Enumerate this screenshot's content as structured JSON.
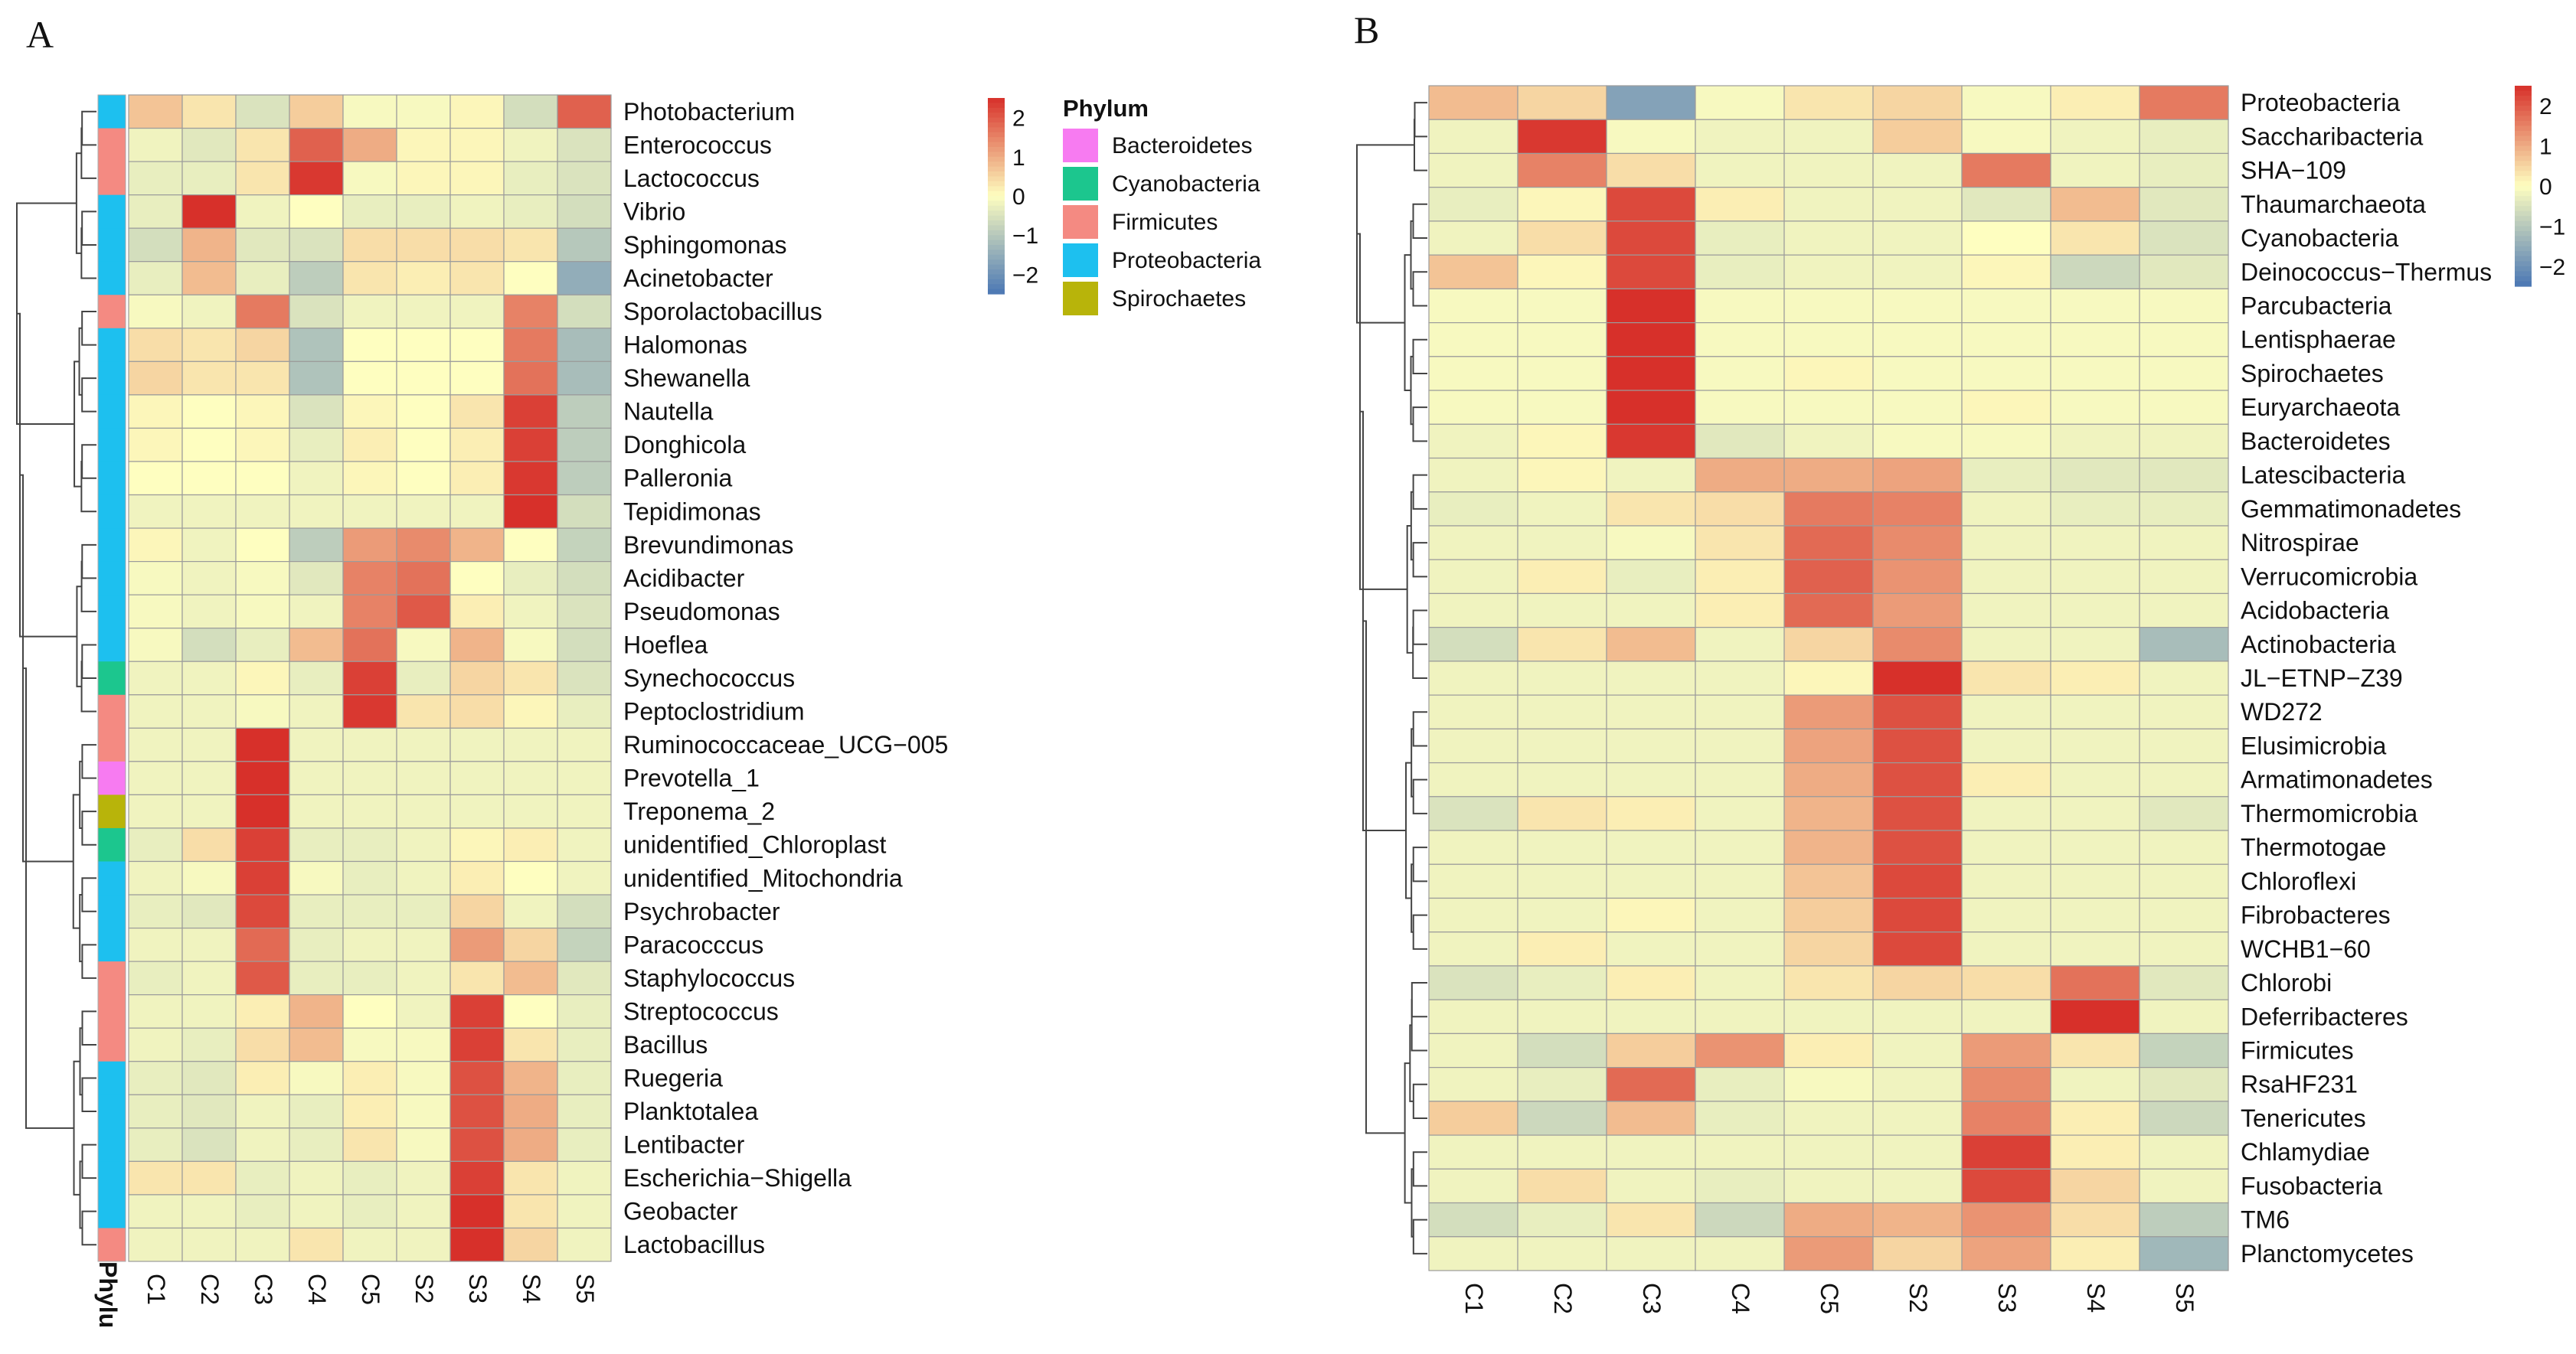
{
  "panels": {
    "a_label": "A",
    "b_label": "B"
  },
  "color_scale": {
    "low": "#4A77B4",
    "mid": "#FEFEC0",
    "high": "#D7302A",
    "ticks": [
      "2",
      "1",
      "0",
      "−1",
      "−2"
    ],
    "tick_values": [
      2,
      1,
      0,
      -1,
      -2
    ]
  },
  "phylum_legend": {
    "title": "Phylum",
    "annotation_label": "Phylu",
    "items": [
      {
        "name": "Bacteroidetes",
        "color": "#F77BF1"
      },
      {
        "name": "Cyanobacteria",
        "color": "#1CC68E"
      },
      {
        "name": "Firmicutes",
        "color": "#F48A82"
      },
      {
        "name": "Proteobacteria",
        "color": "#1DC0EF"
      },
      {
        "name": "Spirochaetes",
        "color": "#B8B40A"
      }
    ]
  },
  "chart_data": [
    {
      "type": "heatmap",
      "title": "A",
      "columns": [
        "C1",
        "C2",
        "C3",
        "C4",
        "C5",
        "S2",
        "S3",
        "S4",
        "S5"
      ],
      "rows": [
        "Photobacterium",
        "Enterococcus",
        "Lactococcus",
        "Vibrio",
        "Sphingomonas",
        "Acinetobacter",
        "Sporolactobacillus",
        "Halomonas",
        "Shewanella",
        "Nautella",
        "Donghicola",
        "Palleronia",
        "Tepidimonas",
        "Brevundimonas",
        "Acidibacter",
        "Pseudomonas",
        "Hoeflea",
        "Synechococcus",
        "Peptoclostridium",
        "Ruminococcaceae_UCG−005",
        "Prevotella_1",
        "Treponema_2",
        "unidentified_Chloroplast",
        "unidentified_Mitochondria",
        "Psychrobacter",
        "Paracocccus",
        "Staphylococcus",
        "Streptococcus",
        "Bacillus",
        "Ruegeria",
        "Planktotalea",
        "Lentibacter",
        "Escherichia−Shigella",
        "Geobacter",
        "Lactobacillus"
      ],
      "row_phylum": [
        "Proteobacteria",
        "Firmicutes",
        "Firmicutes",
        "Proteobacteria",
        "Proteobacteria",
        "Proteobacteria",
        "Firmicutes",
        "Proteobacteria",
        "Proteobacteria",
        "Proteobacteria",
        "Proteobacteria",
        "Proteobacteria",
        "Proteobacteria",
        "Proteobacteria",
        "Proteobacteria",
        "Proteobacteria",
        "Proteobacteria",
        "Cyanobacteria",
        "Firmicutes",
        "Firmicutes",
        "Bacteroidetes",
        "Spirochaetes",
        "Cyanobacteria",
        "Proteobacteria",
        "Proteobacteria",
        "Proteobacteria",
        "Firmicutes",
        "Firmicutes",
        "Firmicutes",
        "Proteobacteria",
        "Proteobacteria",
        "Proteobacteria",
        "Proteobacteria",
        "Proteobacteria",
        "Firmicutes"
      ],
      "values": [
        [
          0.7,
          0.3,
          -0.5,
          0.6,
          -0.1,
          -0.1,
          0.1,
          -0.6,
          1.9
        ],
        [
          -0.2,
          -0.4,
          0.3,
          1.9,
          1.0,
          0.1,
          0.1,
          -0.2,
          -0.5
        ],
        [
          -0.3,
          -0.3,
          0.3,
          2.4,
          -0.1,
          0.1,
          0.1,
          -0.3,
          -0.5
        ],
        [
          -0.3,
          2.5,
          -0.2,
          0.0,
          -0.3,
          -0.3,
          -0.2,
          -0.3,
          -0.6
        ],
        [
          -0.6,
          0.9,
          -0.4,
          -0.5,
          0.4,
          0.4,
          0.4,
          0.3,
          -1.0
        ],
        [
          -0.3,
          0.8,
          -0.3,
          -0.9,
          0.3,
          0.2,
          0.3,
          0.0,
          -1.5
        ],
        [
          -0.1,
          -0.2,
          1.6,
          -0.5,
          -0.2,
          -0.2,
          -0.2,
          1.5,
          -0.6
        ],
        [
          0.4,
          0.3,
          0.5,
          -1.1,
          0.0,
          0.0,
          0.0,
          1.6,
          -1.2
        ],
        [
          0.5,
          0.3,
          0.3,
          -1.1,
          0.0,
          0.0,
          0.0,
          1.7,
          -1.2
        ],
        [
          0.1,
          0.0,
          0.1,
          -0.5,
          0.1,
          0.0,
          0.3,
          2.3,
          -0.9
        ],
        [
          0.1,
          0.0,
          0.1,
          -0.3,
          0.2,
          0.0,
          0.2,
          2.3,
          -0.9
        ],
        [
          0.0,
          0.0,
          0.0,
          -0.2,
          0.1,
          0.0,
          0.2,
          2.4,
          -0.9
        ],
        [
          -0.2,
          -0.2,
          -0.2,
          -0.2,
          -0.2,
          -0.2,
          -0.2,
          2.5,
          -0.6
        ],
        [
          0.1,
          -0.2,
          0.0,
          -0.9,
          1.2,
          1.4,
          0.9,
          0.0,
          -0.8
        ],
        [
          -0.1,
          -0.2,
          -0.1,
          -0.4,
          1.5,
          1.7,
          0.0,
          -0.3,
          -0.6
        ],
        [
          -0.1,
          -0.2,
          -0.1,
          -0.2,
          1.5,
          2.0,
          0.2,
          -0.2,
          -0.5
        ],
        [
          -0.1,
          -0.6,
          -0.3,
          0.8,
          1.7,
          -0.1,
          0.9,
          -0.1,
          -0.6
        ],
        [
          -0.2,
          -0.2,
          0.1,
          -0.3,
          2.3,
          -0.3,
          0.5,
          0.3,
          -0.5
        ],
        [
          -0.2,
          -0.2,
          -0.1,
          -0.2,
          2.4,
          0.3,
          0.4,
          0.1,
          -0.3
        ],
        [
          -0.2,
          -0.2,
          2.6,
          -0.2,
          -0.2,
          -0.2,
          -0.2,
          -0.2,
          -0.2
        ],
        [
          -0.2,
          -0.2,
          2.6,
          -0.2,
          -0.2,
          -0.2,
          -0.2,
          -0.2,
          -0.2
        ],
        [
          -0.2,
          -0.2,
          2.5,
          -0.2,
          -0.2,
          -0.2,
          -0.2,
          -0.2,
          -0.2
        ],
        [
          -0.3,
          0.4,
          2.3,
          -0.3,
          -0.3,
          -0.2,
          0.1,
          0.2,
          -0.2
        ],
        [
          -0.2,
          -0.1,
          2.3,
          -0.1,
          -0.3,
          -0.2,
          0.2,
          0.0,
          -0.2
        ],
        [
          -0.3,
          -0.4,
          2.2,
          -0.3,
          -0.3,
          -0.3,
          0.5,
          -0.2,
          -0.6
        ],
        [
          -0.2,
          -0.2,
          1.8,
          -0.3,
          -0.2,
          -0.2,
          1.2,
          0.5,
          -0.8
        ],
        [
          -0.3,
          -0.2,
          2.0,
          -0.3,
          -0.3,
          -0.2,
          0.3,
          0.8,
          -0.4
        ],
        [
          -0.2,
          -0.2,
          0.2,
          0.9,
          0.0,
          -0.2,
          2.3,
          0.0,
          -0.3
        ],
        [
          -0.2,
          -0.3,
          0.4,
          0.8,
          -0.1,
          -0.1,
          2.3,
          0.3,
          -0.3
        ],
        [
          -0.3,
          -0.4,
          0.2,
          -0.1,
          0.2,
          -0.1,
          2.1,
          0.9,
          -0.3
        ],
        [
          -0.3,
          -0.4,
          -0.2,
          -0.3,
          0.2,
          -0.1,
          2.1,
          1.0,
          -0.3
        ],
        [
          -0.3,
          -0.5,
          -0.2,
          -0.3,
          0.3,
          -0.1,
          2.1,
          1.0,
          -0.3
        ],
        [
          0.3,
          0.3,
          -0.3,
          -0.2,
          -0.3,
          -0.2,
          2.3,
          0.3,
          -0.2
        ],
        [
          -0.2,
          -0.2,
          -0.3,
          -0.2,
          -0.3,
          -0.2,
          2.5,
          0.3,
          -0.2
        ],
        [
          -0.2,
          -0.2,
          -0.2,
          0.3,
          -0.2,
          -0.2,
          2.5,
          0.5,
          -0.2
        ]
      ],
      "zlim": [
        -2.5,
        2.5
      ]
    },
    {
      "type": "heatmap",
      "title": "B",
      "columns": [
        "C1",
        "C2",
        "C3",
        "C4",
        "C5",
        "S2",
        "S3",
        "S4",
        "S5"
      ],
      "rows": [
        "Proteobacteria",
        "Saccharibacteria",
        "SHA−109",
        "Thaumarchaeota",
        "Cyanobacteria",
        "Deinococcus−Thermus",
        "Parcubacteria",
        "Lentisphaerae",
        "Spirochaetes",
        "Euryarchaeota",
        "Bacteroidetes",
        "Latescibacteria",
        "Gemmatimonadetes",
        "Nitrospirae",
        "Verrucomicrobia",
        "Acidobacteria",
        "Actinobacteria",
        "JL−ETNP−Z39",
        "WD272",
        "Elusimicrobia",
        "Armatimonadetes",
        "Thermomicrobia",
        "Thermotogae",
        "Chloroflexi",
        "Fibrobacteres",
        "WCHB1−60",
        "Chlorobi",
        "Deferribacteres",
        "Firmicutes",
        "RsaHF231",
        "Tenericutes",
        "Chlamydiae",
        "Fusobacteria",
        "TM6",
        "Planctomycetes"
      ],
      "values": [
        [
          0.8,
          0.5,
          -1.7,
          -0.1,
          0.3,
          0.5,
          -0.1,
          0.2,
          1.6
        ],
        [
          -0.2,
          2.4,
          -0.1,
          -0.2,
          -0.2,
          0.6,
          -0.1,
          -0.2,
          -0.3
        ],
        [
          -0.2,
          1.5,
          0.4,
          -0.2,
          -0.2,
          -0.2,
          1.6,
          -0.2,
          -0.3
        ],
        [
          -0.3,
          0.1,
          2.2,
          0.2,
          -0.2,
          -0.2,
          -0.4,
          0.8,
          -0.4
        ],
        [
          -0.2,
          0.4,
          2.2,
          -0.3,
          -0.2,
          -0.2,
          0.0,
          0.3,
          -0.5
        ],
        [
          0.7,
          0.1,
          2.2,
          -0.3,
          -0.2,
          -0.2,
          0.1,
          -0.7,
          -0.4
        ],
        [
          -0.1,
          -0.1,
          2.5,
          -0.1,
          -0.1,
          -0.1,
          -0.1,
          -0.1,
          -0.1
        ],
        [
          -0.1,
          -0.1,
          2.5,
          -0.1,
          -0.1,
          -0.1,
          -0.1,
          -0.1,
          -0.1
        ],
        [
          -0.1,
          -0.1,
          2.5,
          -0.1,
          0.1,
          -0.1,
          -0.1,
          -0.1,
          -0.1
        ],
        [
          -0.1,
          -0.1,
          2.5,
          -0.1,
          -0.1,
          -0.1,
          0.1,
          -0.1,
          -0.1
        ],
        [
          -0.2,
          0.1,
          2.4,
          -0.4,
          -0.2,
          -0.1,
          -0.1,
          -0.2,
          -0.2
        ],
        [
          -0.2,
          0.1,
          -0.2,
          1.0,
          1.0,
          1.1,
          -0.3,
          -0.4,
          -0.4
        ],
        [
          -0.3,
          -0.2,
          0.3,
          0.4,
          1.6,
          1.5,
          -0.2,
          -0.3,
          -0.3
        ],
        [
          -0.2,
          -0.2,
          -0.1,
          0.3,
          1.8,
          1.4,
          -0.2,
          -0.2,
          -0.2
        ],
        [
          -0.2,
          0.2,
          -0.3,
          0.2,
          1.9,
          1.3,
          -0.2,
          -0.2,
          -0.2
        ],
        [
          -0.2,
          -0.2,
          -0.2,
          0.2,
          1.8,
          1.2,
          -0.2,
          -0.2,
          -0.2
        ],
        [
          -0.6,
          0.3,
          0.8,
          -0.2,
          0.5,
          1.4,
          -0.2,
          -0.2,
          -1.2
        ],
        [
          -0.2,
          -0.2,
          -0.2,
          -0.2,
          0.1,
          2.6,
          0.3,
          0.2,
          -0.2
        ],
        [
          -0.2,
          -0.2,
          -0.2,
          -0.2,
          1.2,
          2.1,
          -0.2,
          -0.2,
          -0.2
        ],
        [
          -0.2,
          -0.2,
          -0.2,
          -0.2,
          1.1,
          2.1,
          -0.2,
          -0.2,
          -0.2
        ],
        [
          -0.2,
          -0.2,
          -0.2,
          -0.2,
          1.0,
          2.1,
          0.2,
          -0.2,
          -0.2
        ],
        [
          -0.5,
          0.3,
          0.2,
          -0.2,
          0.9,
          2.1,
          -0.2,
          -0.2,
          -0.4
        ],
        [
          -0.2,
          -0.2,
          -0.2,
          -0.2,
          0.9,
          2.1,
          -0.2,
          -0.2,
          -0.2
        ],
        [
          -0.2,
          -0.2,
          -0.2,
          -0.2,
          0.7,
          2.2,
          -0.2,
          -0.2,
          -0.2
        ],
        [
          -0.2,
          -0.2,
          0.1,
          -0.2,
          0.6,
          2.2,
          -0.2,
          -0.2,
          -0.2
        ],
        [
          -0.2,
          0.2,
          -0.2,
          -0.2,
          0.5,
          2.2,
          -0.2,
          -0.2,
          -0.2
        ],
        [
          -0.5,
          -0.3,
          0.2,
          -0.2,
          0.3,
          0.5,
          0.4,
          1.7,
          -0.4
        ],
        [
          -0.2,
          -0.2,
          -0.2,
          -0.2,
          -0.2,
          -0.2,
          -0.2,
          2.5,
          -0.2
        ],
        [
          -0.2,
          -0.6,
          0.6,
          1.3,
          0.2,
          -0.2,
          1.2,
          0.3,
          -0.8
        ],
        [
          -0.2,
          -0.3,
          1.8,
          -0.3,
          -0.1,
          -0.2,
          1.4,
          -0.2,
          -0.4
        ],
        [
          0.6,
          -0.7,
          0.8,
          -0.3,
          -0.2,
          -0.2,
          1.5,
          0.2,
          -0.7
        ],
        [
          -0.2,
          -0.2,
          -0.2,
          -0.2,
          -0.2,
          -0.2,
          2.3,
          0.2,
          -0.2
        ],
        [
          -0.2,
          0.4,
          -0.2,
          -0.3,
          -0.2,
          -0.2,
          2.2,
          0.5,
          -0.2
        ],
        [
          -0.6,
          -0.3,
          0.3,
          -0.7,
          1.0,
          0.9,
          1.3,
          0.4,
          -0.9
        ],
        [
          -0.2,
          -0.2,
          -0.2,
          -0.2,
          1.2,
          0.5,
          1.1,
          0.2,
          -1.3
        ]
      ],
      "zlim": [
        -2.5,
        2.5
      ]
    }
  ]
}
